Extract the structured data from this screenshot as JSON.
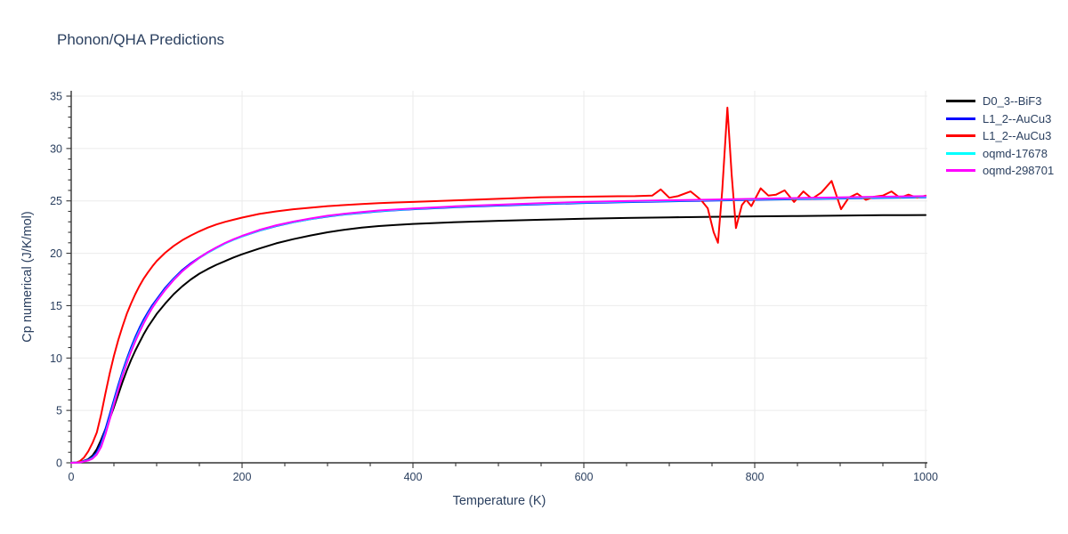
{
  "page": {
    "background_color": "#ffffff"
  },
  "chart_data": {
    "type": "line",
    "title": "Phonon/QHA Predictions",
    "xlabel": "Temperature (K)",
    "ylabel": "Cp numerical (J/K/mol)",
    "xlim": [
      0,
      1000
    ],
    "ylim": [
      0,
      35.5
    ],
    "x_major_ticks": [
      0,
      200,
      400,
      600,
      800,
      1000
    ],
    "x_minor_step": 50,
    "y_major_ticks": [
      0,
      5,
      10,
      15,
      20,
      25,
      30,
      35
    ],
    "y_minor_step": 1,
    "grid": true,
    "grid_color": "#ebebeb",
    "axis_color": "#333333",
    "tick_label_color": "#2a3f5f",
    "title_color": "#2a3f5f",
    "legend_position": "right",
    "series": [
      {
        "id": "d0-3-bif3",
        "name": "D0_3--BiF3",
        "color": "#000000",
        "points": [
          [
            0,
            0
          ],
          [
            10,
            0.05
          ],
          [
            20,
            0.35
          ],
          [
            25,
            0.7
          ],
          [
            30,
            1.3
          ],
          [
            35,
            2.2
          ],
          [
            40,
            3.2
          ],
          [
            45,
            4.2
          ],
          [
            50,
            5.3
          ],
          [
            55,
            6.5
          ],
          [
            60,
            7.7
          ],
          [
            65,
            8.8
          ],
          [
            70,
            9.8
          ],
          [
            75,
            10.7
          ],
          [
            80,
            11.5
          ],
          [
            85,
            12.3
          ],
          [
            90,
            13.0
          ],
          [
            95,
            13.6
          ],
          [
            100,
            14.2
          ],
          [
            110,
            15.2
          ],
          [
            120,
            16.1
          ],
          [
            130,
            16.85
          ],
          [
            140,
            17.5
          ],
          [
            150,
            18.05
          ],
          [
            160,
            18.5
          ],
          [
            170,
            18.9
          ],
          [
            180,
            19.25
          ],
          [
            190,
            19.6
          ],
          [
            200,
            19.9
          ],
          [
            220,
            20.45
          ],
          [
            240,
            20.95
          ],
          [
            260,
            21.35
          ],
          [
            280,
            21.7
          ],
          [
            300,
            22.0
          ],
          [
            320,
            22.25
          ],
          [
            340,
            22.45
          ],
          [
            360,
            22.6
          ],
          [
            380,
            22.7
          ],
          [
            400,
            22.8
          ],
          [
            450,
            22.97
          ],
          [
            500,
            23.1
          ],
          [
            550,
            23.2
          ],
          [
            600,
            23.3
          ],
          [
            650,
            23.37
          ],
          [
            700,
            23.43
          ],
          [
            750,
            23.48
          ],
          [
            800,
            23.52
          ],
          [
            850,
            23.56
          ],
          [
            900,
            23.6
          ],
          [
            950,
            23.63
          ],
          [
            1000,
            23.65
          ]
        ]
      },
      {
        "id": "l1-2-aucu3-blue",
        "name": "L1_2--AuCu3",
        "color": "#0000ff",
        "points": [
          [
            0,
            0
          ],
          [
            10,
            0.05
          ],
          [
            20,
            0.3
          ],
          [
            25,
            0.55
          ],
          [
            30,
            1.0
          ],
          [
            35,
            1.9
          ],
          [
            40,
            3.2
          ],
          [
            45,
            4.6
          ],
          [
            50,
            6.0
          ],
          [
            55,
            7.4
          ],
          [
            60,
            8.7
          ],
          [
            65,
            9.9
          ],
          [
            70,
            11.0
          ],
          [
            75,
            12.0
          ],
          [
            80,
            12.9
          ],
          [
            85,
            13.7
          ],
          [
            90,
            14.4
          ],
          [
            95,
            15.05
          ],
          [
            100,
            15.6
          ],
          [
            110,
            16.7
          ],
          [
            120,
            17.6
          ],
          [
            130,
            18.4
          ],
          [
            140,
            19.05
          ],
          [
            150,
            19.6
          ],
          [
            160,
            20.1
          ],
          [
            170,
            20.55
          ],
          [
            180,
            20.95
          ],
          [
            190,
            21.3
          ],
          [
            200,
            21.6
          ],
          [
            220,
            22.15
          ],
          [
            240,
            22.6
          ],
          [
            260,
            22.95
          ],
          [
            280,
            23.25
          ],
          [
            300,
            23.5
          ],
          [
            320,
            23.7
          ],
          [
            340,
            23.85
          ],
          [
            360,
            24.0
          ],
          [
            380,
            24.1
          ],
          [
            400,
            24.2
          ],
          [
            450,
            24.4
          ],
          [
            500,
            24.55
          ],
          [
            550,
            24.68
          ],
          [
            600,
            24.8
          ],
          [
            650,
            24.88
          ],
          [
            700,
            24.96
          ],
          [
            750,
            25.03
          ],
          [
            800,
            25.1
          ],
          [
            850,
            25.16
          ],
          [
            900,
            25.22
          ],
          [
            950,
            25.28
          ],
          [
            1000,
            25.33
          ]
        ]
      },
      {
        "id": "l1-2-aucu3-red",
        "name": "L1_2--AuCu3",
        "color": "#ff0000",
        "points": [
          [
            0,
            0
          ],
          [
            5,
            0.02
          ],
          [
            10,
            0.15
          ],
          [
            15,
            0.5
          ],
          [
            20,
            1.1
          ],
          [
            25,
            1.9
          ],
          [
            30,
            2.9
          ],
          [
            35,
            4.6
          ],
          [
            40,
            6.6
          ],
          [
            45,
            8.5
          ],
          [
            50,
            10.2
          ],
          [
            55,
            11.7
          ],
          [
            60,
            13.0
          ],
          [
            65,
            14.2
          ],
          [
            70,
            15.2
          ],
          [
            75,
            16.1
          ],
          [
            80,
            16.9
          ],
          [
            85,
            17.6
          ],
          [
            90,
            18.2
          ],
          [
            95,
            18.75
          ],
          [
            100,
            19.25
          ],
          [
            110,
            20.05
          ],
          [
            120,
            20.7
          ],
          [
            130,
            21.25
          ],
          [
            140,
            21.7
          ],
          [
            150,
            22.1
          ],
          [
            160,
            22.45
          ],
          [
            170,
            22.75
          ],
          [
            180,
            23.0
          ],
          [
            190,
            23.2
          ],
          [
            200,
            23.4
          ],
          [
            220,
            23.75
          ],
          [
            240,
            24.0
          ],
          [
            260,
            24.2
          ],
          [
            280,
            24.35
          ],
          [
            300,
            24.5
          ],
          [
            320,
            24.6
          ],
          [
            340,
            24.7
          ],
          [
            360,
            24.78
          ],
          [
            380,
            24.85
          ],
          [
            400,
            24.9
          ],
          [
            450,
            25.05
          ],
          [
            500,
            25.2
          ],
          [
            550,
            25.35
          ],
          [
            600,
            25.4
          ],
          [
            620,
            25.42
          ],
          [
            640,
            25.44
          ],
          [
            660,
            25.45
          ],
          [
            680,
            25.5
          ],
          [
            690,
            26.1
          ],
          [
            700,
            25.3
          ],
          [
            710,
            25.45
          ],
          [
            725,
            25.9
          ],
          [
            737,
            25.1
          ],
          [
            745,
            24.3
          ],
          [
            752,
            22.0
          ],
          [
            757,
            21.0
          ],
          [
            762,
            26.0
          ],
          [
            768,
            33.9
          ],
          [
            773,
            27.5
          ],
          [
            778,
            22.4
          ],
          [
            785,
            24.6
          ],
          [
            790,
            25.1
          ],
          [
            796,
            24.5
          ],
          [
            807,
            26.2
          ],
          [
            816,
            25.5
          ],
          [
            825,
            25.6
          ],
          [
            835,
            26.0
          ],
          [
            846,
            24.9
          ],
          [
            857,
            25.9
          ],
          [
            867,
            25.2
          ],
          [
            878,
            25.8
          ],
          [
            890,
            26.9
          ],
          [
            901,
            24.2
          ],
          [
            910,
            25.3
          ],
          [
            920,
            25.7
          ],
          [
            930,
            25.1
          ],
          [
            940,
            25.4
          ],
          [
            950,
            25.5
          ],
          [
            960,
            25.9
          ],
          [
            970,
            25.3
          ],
          [
            980,
            25.6
          ],
          [
            990,
            25.3
          ],
          [
            1000,
            25.5
          ]
        ]
      },
      {
        "id": "oqmd-17678",
        "name": "oqmd-17678",
        "color": "#00ffff",
        "points": [
          [
            0,
            0
          ],
          [
            10,
            0.04
          ],
          [
            20,
            0.25
          ],
          [
            25,
            0.45
          ],
          [
            30,
            0.85
          ],
          [
            35,
            1.6
          ],
          [
            40,
            2.85
          ],
          [
            45,
            4.25
          ],
          [
            50,
            5.7
          ],
          [
            55,
            7.1
          ],
          [
            60,
            8.45
          ],
          [
            65,
            9.65
          ],
          [
            70,
            10.75
          ],
          [
            75,
            11.75
          ],
          [
            80,
            12.65
          ],
          [
            85,
            13.45
          ],
          [
            90,
            14.2
          ],
          [
            95,
            14.85
          ],
          [
            100,
            15.45
          ],
          [
            110,
            16.55
          ],
          [
            120,
            17.5
          ],
          [
            130,
            18.3
          ],
          [
            140,
            18.95
          ],
          [
            150,
            19.55
          ],
          [
            160,
            20.05
          ],
          [
            170,
            20.5
          ],
          [
            180,
            20.92
          ],
          [
            190,
            21.28
          ],
          [
            200,
            21.6
          ],
          [
            220,
            22.16
          ],
          [
            240,
            22.62
          ],
          [
            260,
            22.97
          ],
          [
            280,
            23.27
          ],
          [
            300,
            23.53
          ],
          [
            320,
            23.73
          ],
          [
            340,
            23.88
          ],
          [
            360,
            24.03
          ],
          [
            380,
            24.13
          ],
          [
            400,
            24.24
          ],
          [
            450,
            24.44
          ],
          [
            500,
            24.6
          ],
          [
            550,
            24.73
          ],
          [
            600,
            24.85
          ],
          [
            650,
            24.93
          ],
          [
            700,
            25.01
          ],
          [
            750,
            25.08
          ],
          [
            800,
            25.15
          ],
          [
            850,
            25.21
          ],
          [
            900,
            25.27
          ],
          [
            950,
            25.33
          ],
          [
            1000,
            25.38
          ]
        ]
      },
      {
        "id": "oqmd-298701",
        "name": "oqmd-298701",
        "color": "#ff00ff",
        "points": [
          [
            0,
            0
          ],
          [
            10,
            0.03
          ],
          [
            20,
            0.22
          ],
          [
            25,
            0.4
          ],
          [
            30,
            0.8
          ],
          [
            35,
            1.5
          ],
          [
            40,
            2.7
          ],
          [
            45,
            4.1
          ],
          [
            50,
            5.55
          ],
          [
            55,
            6.95
          ],
          [
            60,
            8.3
          ],
          [
            65,
            9.5
          ],
          [
            70,
            10.6
          ],
          [
            75,
            11.6
          ],
          [
            80,
            12.5
          ],
          [
            85,
            13.35
          ],
          [
            90,
            14.1
          ],
          [
            95,
            14.8
          ],
          [
            100,
            15.4
          ],
          [
            110,
            16.5
          ],
          [
            120,
            17.45
          ],
          [
            130,
            18.28
          ],
          [
            140,
            18.95
          ],
          [
            150,
            19.57
          ],
          [
            160,
            20.1
          ],
          [
            170,
            20.56
          ],
          [
            180,
            20.98
          ],
          [
            190,
            21.34
          ],
          [
            200,
            21.66
          ],
          [
            220,
            22.22
          ],
          [
            240,
            22.67
          ],
          [
            260,
            23.02
          ],
          [
            280,
            23.32
          ],
          [
            300,
            23.58
          ],
          [
            320,
            23.78
          ],
          [
            340,
            23.94
          ],
          [
            360,
            24.08
          ],
          [
            380,
            24.18
          ],
          [
            400,
            24.28
          ],
          [
            450,
            24.48
          ],
          [
            500,
            24.64
          ],
          [
            550,
            24.78
          ],
          [
            600,
            24.9
          ],
          [
            650,
            24.98
          ],
          [
            700,
            25.06
          ],
          [
            750,
            25.13
          ],
          [
            800,
            25.2
          ],
          [
            850,
            25.27
          ],
          [
            900,
            25.33
          ],
          [
            950,
            25.4
          ],
          [
            1000,
            25.45
          ]
        ]
      }
    ]
  }
}
